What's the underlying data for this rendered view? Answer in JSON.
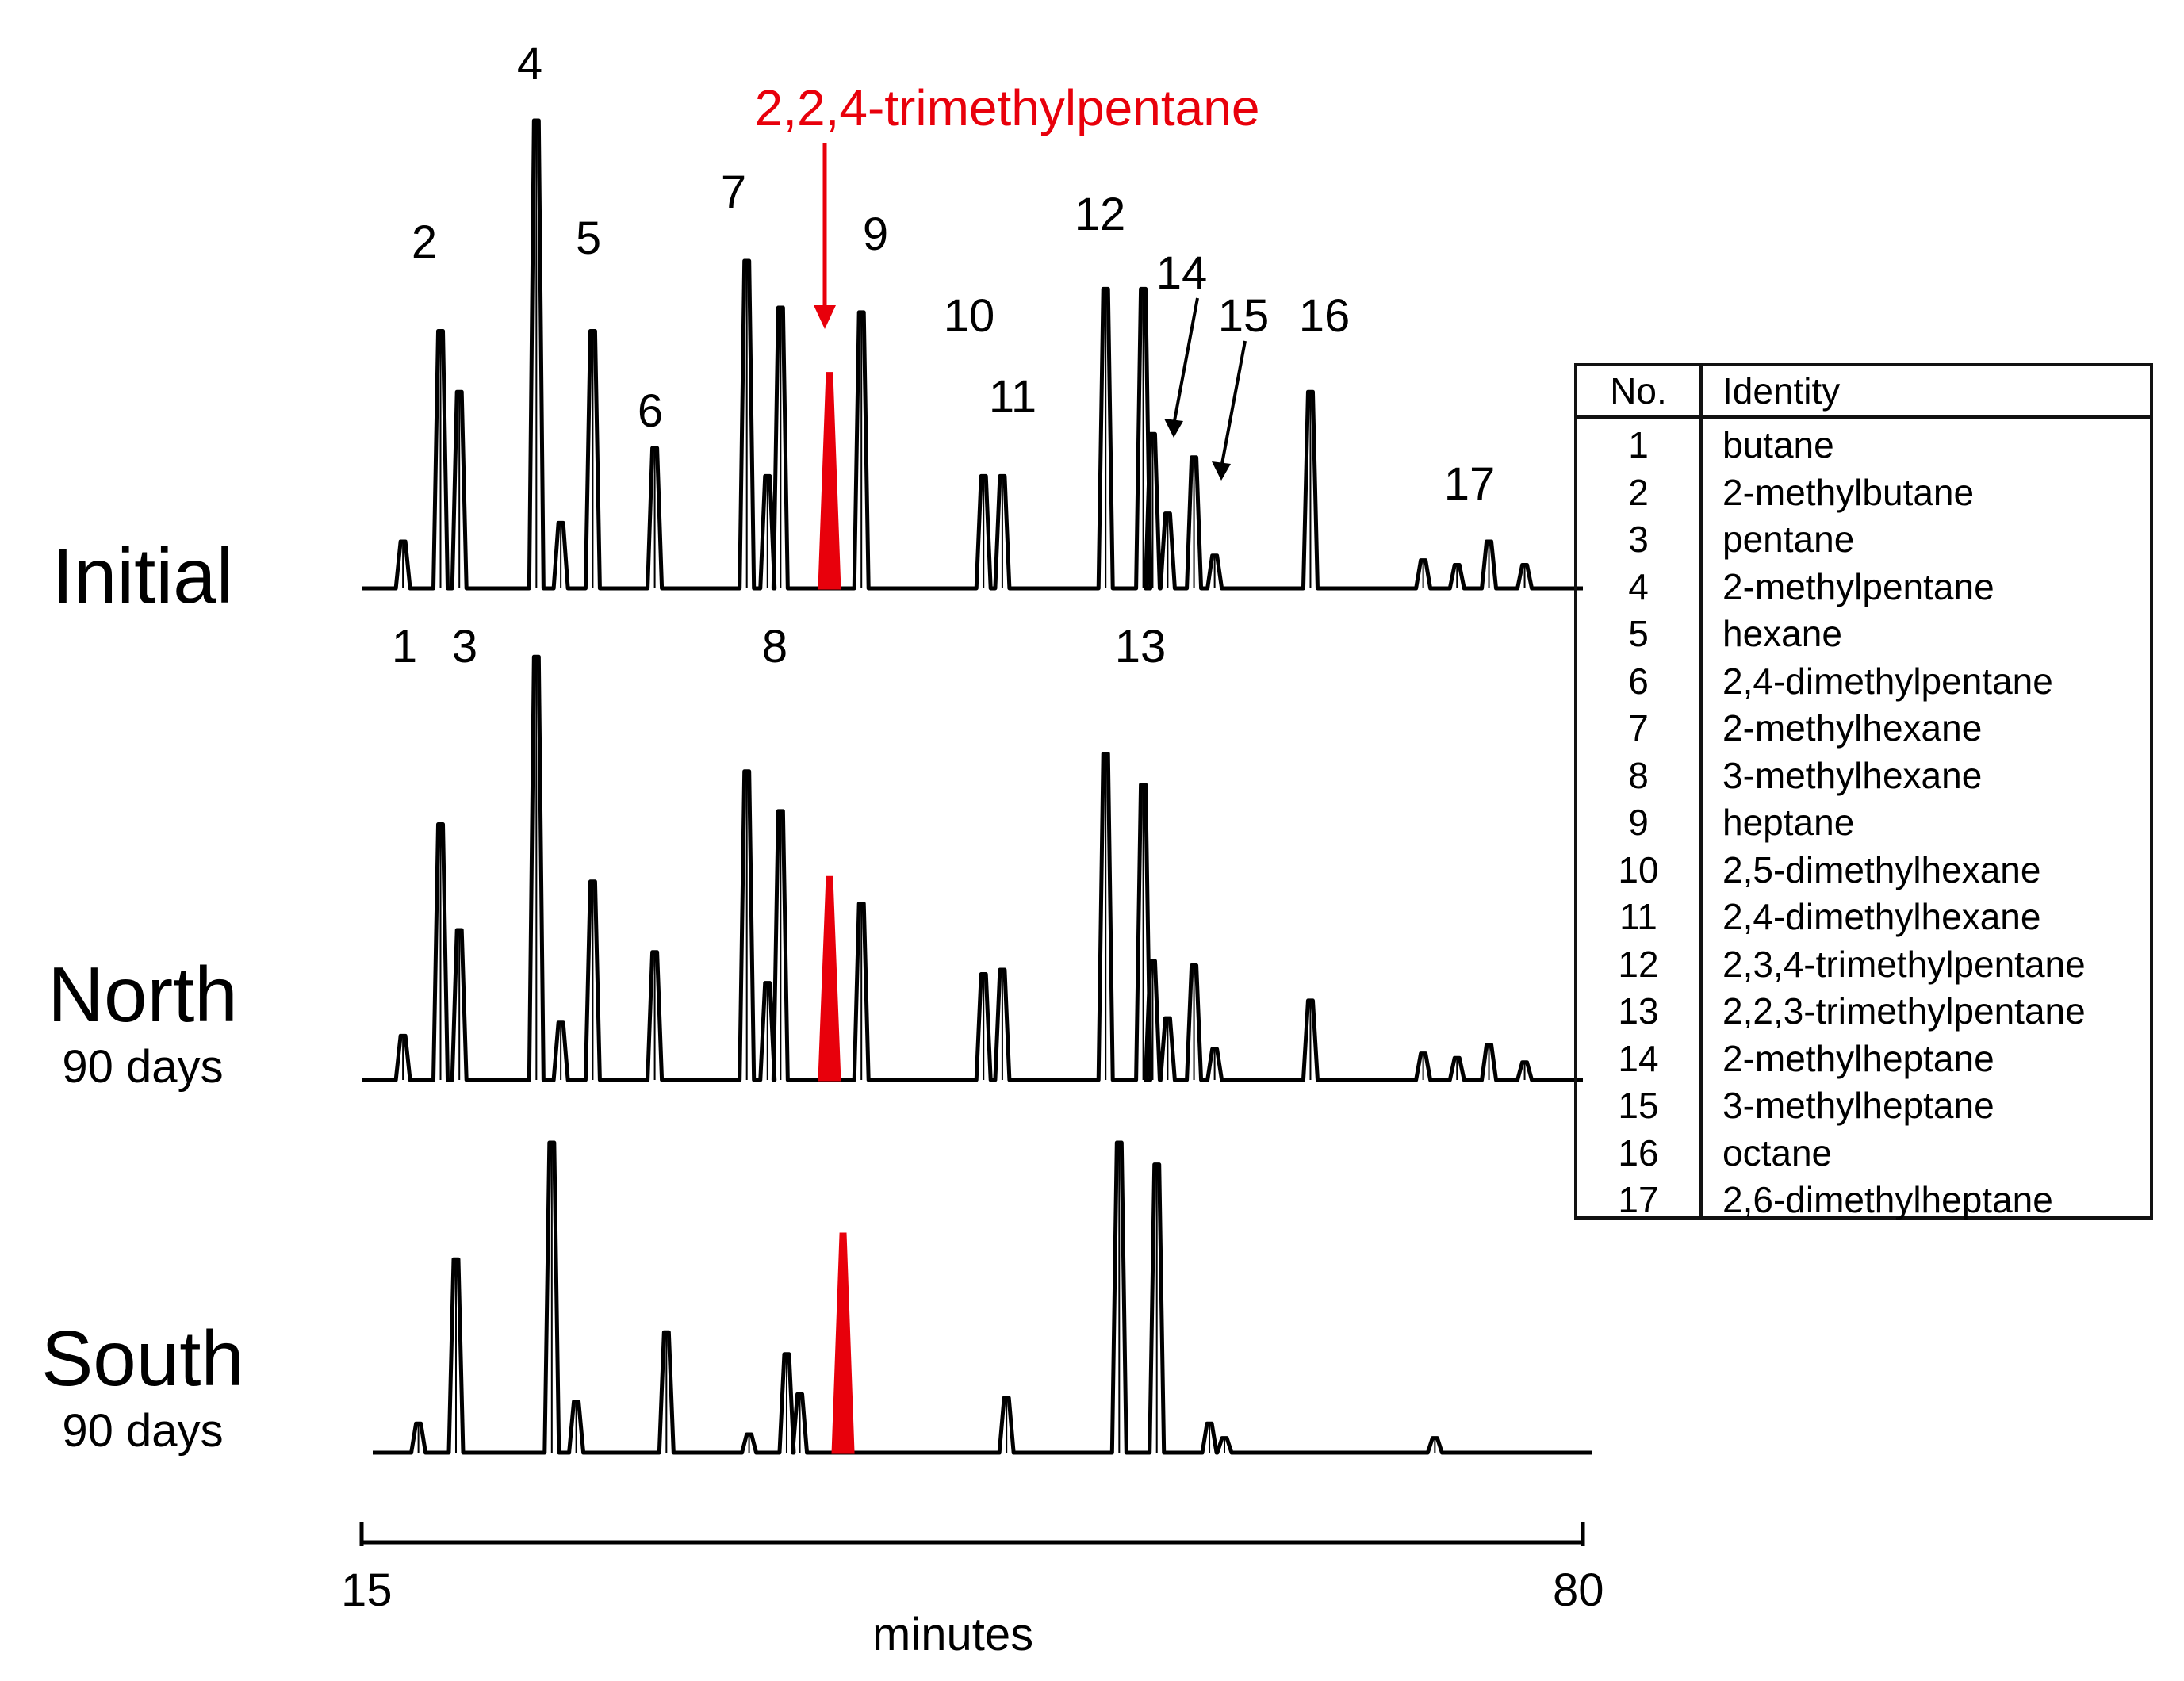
{
  "chart_data": {
    "type": "line",
    "title": "",
    "xlabel": "minutes",
    "x_range": [
      15,
      80
    ],
    "x_ticks": [
      "15",
      "80"
    ],
    "highlight": {
      "label": "2,2,4-trimethylpentane",
      "color": "#e8000b"
    },
    "traces": [
      {
        "name": "Initial",
        "sublabel": "",
        "peaks": [
          {
            "rt": 17.2,
            "height": 0.1,
            "label": "1"
          },
          {
            "rt": 19.2,
            "height": 0.55,
            "label": "2"
          },
          {
            "rt": 20.2,
            "height": 0.42,
            "label": "3"
          },
          {
            "rt": 24.3,
            "height": 1.0,
            "label": "4"
          },
          {
            "rt": 25.6,
            "height": 0.14
          },
          {
            "rt": 27.3,
            "height": 0.55,
            "label": "5"
          },
          {
            "rt": 30.6,
            "height": 0.3,
            "label": "6"
          },
          {
            "rt": 35.5,
            "height": 0.7,
            "label": "7"
          },
          {
            "rt": 36.6,
            "height": 0.24
          },
          {
            "rt": 37.3,
            "height": 0.6,
            "label": "8"
          },
          {
            "rt": 39.9,
            "height": 0.46,
            "label": "2,2,4-trimethylpentane",
            "highlight": true
          },
          {
            "rt": 41.6,
            "height": 0.59,
            "label": "9"
          },
          {
            "rt": 48.1,
            "height": 0.24,
            "label": "10"
          },
          {
            "rt": 49.1,
            "height": 0.24,
            "label": "11"
          },
          {
            "rt": 54.6,
            "height": 0.64,
            "label": "12"
          },
          {
            "rt": 56.6,
            "height": 0.64,
            "label": "13"
          },
          {
            "rt": 57.1,
            "height": 0.33,
            "label": "14"
          },
          {
            "rt": 57.9,
            "height": 0.16
          },
          {
            "rt": 59.3,
            "height": 0.28,
            "label": "15"
          },
          {
            "rt": 60.4,
            "height": 0.07
          },
          {
            "rt": 65.5,
            "height": 0.42,
            "label": "16"
          },
          {
            "rt": 71.5,
            "height": 0.06
          },
          {
            "rt": 73.3,
            "height": 0.05
          },
          {
            "rt": 75.0,
            "height": 0.1,
            "label": "17"
          },
          {
            "rt": 76.9,
            "height": 0.05
          }
        ]
      },
      {
        "name": "North",
        "sublabel": "90 days",
        "peaks": [
          {
            "rt": 17.2,
            "height": 0.1
          },
          {
            "rt": 19.2,
            "height": 0.58
          },
          {
            "rt": 20.2,
            "height": 0.34
          },
          {
            "rt": 24.3,
            "height": 0.96
          },
          {
            "rt": 25.6,
            "height": 0.13
          },
          {
            "rt": 27.3,
            "height": 0.45
          },
          {
            "rt": 30.6,
            "height": 0.29
          },
          {
            "rt": 35.5,
            "height": 0.7
          },
          {
            "rt": 36.6,
            "height": 0.22
          },
          {
            "rt": 37.3,
            "height": 0.61
          },
          {
            "rt": 39.9,
            "height": 0.46,
            "highlight": true
          },
          {
            "rt": 41.6,
            "height": 0.4
          },
          {
            "rt": 48.1,
            "height": 0.24
          },
          {
            "rt": 49.1,
            "height": 0.25
          },
          {
            "rt": 54.6,
            "height": 0.74
          },
          {
            "rt": 56.6,
            "height": 0.67
          },
          {
            "rt": 57.1,
            "height": 0.27
          },
          {
            "rt": 57.9,
            "height": 0.14
          },
          {
            "rt": 59.3,
            "height": 0.26
          },
          {
            "rt": 60.4,
            "height": 0.07
          },
          {
            "rt": 65.5,
            "height": 0.18
          },
          {
            "rt": 71.5,
            "height": 0.06
          },
          {
            "rt": 73.3,
            "height": 0.05
          },
          {
            "rt": 75.0,
            "height": 0.08
          },
          {
            "rt": 76.9,
            "height": 0.04
          }
        ]
      },
      {
        "name": "South",
        "sublabel": "90 days",
        "peaks": [
          {
            "rt": 17.6,
            "height": 0.08
          },
          {
            "rt": 19.6,
            "height": 0.53
          },
          {
            "rt": 24.7,
            "height": 0.85
          },
          {
            "rt": 26.0,
            "height": 0.14
          },
          {
            "rt": 30.8,
            "height": 0.33
          },
          {
            "rt": 35.2,
            "height": 0.05
          },
          {
            "rt": 37.2,
            "height": 0.27
          },
          {
            "rt": 37.9,
            "height": 0.16
          },
          {
            "rt": 40.2,
            "height": 0.6,
            "highlight": true
          },
          {
            "rt": 48.9,
            "height": 0.15
          },
          {
            "rt": 54.9,
            "height": 0.85
          },
          {
            "rt": 56.9,
            "height": 0.79
          },
          {
            "rt": 59.7,
            "height": 0.08
          },
          {
            "rt": 60.5,
            "height": 0.04
          },
          {
            "rt": 71.7,
            "height": 0.04
          }
        ]
      }
    ],
    "legend": {
      "header": {
        "no": "No.",
        "identity": "Identity"
      },
      "rows": [
        {
          "no": "1",
          "identity": "butane"
        },
        {
          "no": "2",
          "identity": "2-methylbutane"
        },
        {
          "no": "3",
          "identity": "pentane"
        },
        {
          "no": "4",
          "identity": "2-methylpentane"
        },
        {
          "no": "5",
          "identity": "hexane"
        },
        {
          "no": "6",
          "identity": "2,4-dimethylpentane"
        },
        {
          "no": "7",
          "identity": "2-methylhexane"
        },
        {
          "no": "8",
          "identity": "3-methylhexane"
        },
        {
          "no": "9",
          "identity": "heptane"
        },
        {
          "no": "10",
          "identity": "2,5-dimethylhexane"
        },
        {
          "no": "11",
          "identity": "2,4-dimethylhexane"
        },
        {
          "no": "12",
          "identity": "2,3,4-trimethylpentane"
        },
        {
          "no": "13",
          "identity": "2,2,3-trimethylpentane"
        },
        {
          "no": "14",
          "identity": "2-methylheptane"
        },
        {
          "no": "15",
          "identity": "3-methylheptane"
        },
        {
          "no": "16",
          "identity": "octane"
        },
        {
          "no": "17",
          "identity": "2,6-dimethylheptane"
        }
      ]
    }
  }
}
